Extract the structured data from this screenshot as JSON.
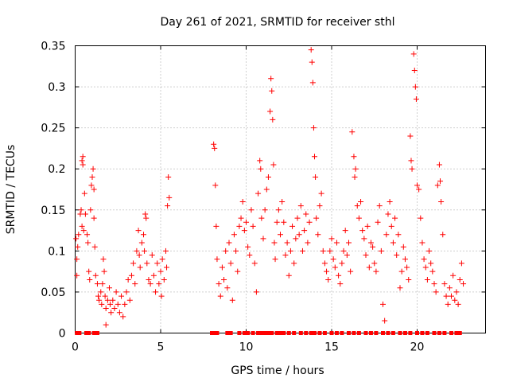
{
  "chart_data": {
    "type": "scatter",
    "title": "Day 261 of 2021, SRMTID for receiver sthl",
    "xlabel": "GPS time / hours",
    "ylabel": "SRMTID / TECUs",
    "xlim": [
      0,
      24
    ],
    "ylim": [
      0,
      0.35
    ],
    "x_ticks": [
      0,
      5,
      10,
      15,
      20
    ],
    "x_tick_labels": [
      "0",
      "5",
      "10",
      "15",
      "20"
    ],
    "y_ticks": [
      0,
      0.05,
      0.1,
      0.15,
      0.2,
      0.25,
      0.3,
      0.35
    ],
    "y_tick_labels": [
      "0",
      "0.05",
      "0.1",
      "0.15",
      "0.2",
      "0.25",
      "0.3",
      "0.35"
    ],
    "grid": true,
    "marker": "+",
    "color": "#ff0000",
    "series": [
      {
        "name": "SRMTID",
        "points": [
          [
            0.05,
            0.115
          ],
          [
            0.1,
            0.09
          ],
          [
            0.1,
            0.07
          ],
          [
            0.15,
            0.105
          ],
          [
            0.2,
            0.12
          ],
          [
            0.3,
            0.145
          ],
          [
            0.35,
            0.15
          ],
          [
            0.4,
            0.13
          ],
          [
            0.4,
            0.21
          ],
          [
            0.45,
            0.215
          ],
          [
            0.45,
            0.205
          ],
          [
            0.5,
            0.125
          ],
          [
            0.55,
            0.17
          ],
          [
            0.6,
            0.145
          ],
          [
            0.7,
            0.12
          ],
          [
            0.75,
            0.11
          ],
          [
            0.8,
            0.075
          ],
          [
            0.85,
            0.065
          ],
          [
            0.9,
            0.15
          ],
          [
            0.95,
            0.18
          ],
          [
            1.0,
            0.19
          ],
          [
            1.05,
            0.2
          ],
          [
            1.1,
            0.175
          ],
          [
            1.1,
            0.14
          ],
          [
            1.15,
            0.105
          ],
          [
            1.2,
            0.07
          ],
          [
            1.3,
            0.06
          ],
          [
            1.35,
            0.045
          ],
          [
            1.4,
            0.04
          ],
          [
            1.5,
            0.05
          ],
          [
            1.55,
            0.035
          ],
          [
            1.6,
            0.06
          ],
          [
            1.65,
            0.09
          ],
          [
            1.7,
            0.075
          ],
          [
            1.75,
            0.045
          ],
          [
            1.8,
            0.03
          ],
          [
            1.8,
            0.01
          ],
          [
            1.9,
            0.04
          ],
          [
            2.0,
            0.055
          ],
          [
            2.05,
            0.035
          ],
          [
            2.1,
            0.025
          ],
          [
            2.2,
            0.04
          ],
          [
            2.3,
            0.03
          ],
          [
            2.4,
            0.05
          ],
          [
            2.5,
            0.035
          ],
          [
            2.6,
            0.025
          ],
          [
            2.7,
            0.045
          ],
          [
            2.8,
            0.02
          ],
          [
            2.9,
            0.035
          ],
          [
            3.0,
            0.05
          ],
          [
            3.1,
            0.065
          ],
          [
            3.2,
            0.04
          ],
          [
            3.3,
            0.07
          ],
          [
            3.4,
            0.085
          ],
          [
            3.5,
            0.06
          ],
          [
            3.6,
            0.1
          ],
          [
            3.7,
            0.125
          ],
          [
            3.75,
            0.095
          ],
          [
            3.8,
            0.08
          ],
          [
            3.9,
            0.11
          ],
          [
            4.0,
            0.12
          ],
          [
            4.05,
            0.1
          ],
          [
            4.1,
            0.145
          ],
          [
            4.15,
            0.14
          ],
          [
            4.2,
            0.085
          ],
          [
            4.3,
            0.065
          ],
          [
            4.4,
            0.06
          ],
          [
            4.5,
            0.095
          ],
          [
            4.6,
            0.07
          ],
          [
            4.7,
            0.05
          ],
          [
            4.8,
            0.085
          ],
          [
            4.9,
            0.06
          ],
          [
            5.0,
            0.075
          ],
          [
            5.05,
            0.045
          ],
          [
            5.1,
            0.09
          ],
          [
            5.2,
            0.065
          ],
          [
            5.3,
            0.1
          ],
          [
            5.35,
            0.08
          ],
          [
            5.4,
            0.155
          ],
          [
            5.45,
            0.19
          ],
          [
            5.5,
            0.165
          ],
          [
            8.1,
            0.23
          ],
          [
            8.15,
            0.225
          ],
          [
            8.2,
            0.18
          ],
          [
            8.25,
            0.13
          ],
          [
            8.3,
            0.09
          ],
          [
            8.4,
            0.06
          ],
          [
            8.5,
            0.045
          ],
          [
            8.6,
            0.08
          ],
          [
            8.7,
            0.065
          ],
          [
            8.8,
            0.1
          ],
          [
            8.9,
            0.055
          ],
          [
            9.0,
            0.11
          ],
          [
            9.1,
            0.085
          ],
          [
            9.2,
            0.04
          ],
          [
            9.3,
            0.12
          ],
          [
            9.4,
            0.1
          ],
          [
            9.5,
            0.075
          ],
          [
            9.6,
            0.13
          ],
          [
            9.7,
            0.14
          ],
          [
            9.8,
            0.16
          ],
          [
            9.9,
            0.125
          ],
          [
            10.0,
            0.135
          ],
          [
            10.1,
            0.105
          ],
          [
            10.2,
            0.095
          ],
          [
            10.3,
            0.15
          ],
          [
            10.4,
            0.13
          ],
          [
            10.5,
            0.085
          ],
          [
            10.6,
            0.05
          ],
          [
            10.7,
            0.17
          ],
          [
            10.8,
            0.21
          ],
          [
            10.85,
            0.2
          ],
          [
            10.9,
            0.14
          ],
          [
            11.0,
            0.115
          ],
          [
            11.1,
            0.15
          ],
          [
            11.2,
            0.175
          ],
          [
            11.3,
            0.19
          ],
          [
            11.4,
            0.27
          ],
          [
            11.45,
            0.31
          ],
          [
            11.5,
            0.295
          ],
          [
            11.55,
            0.26
          ],
          [
            11.6,
            0.205
          ],
          [
            11.65,
            0.11
          ],
          [
            11.7,
            0.09
          ],
          [
            11.8,
            0.135
          ],
          [
            11.9,
            0.15
          ],
          [
            12.0,
            0.12
          ],
          [
            12.1,
            0.16
          ],
          [
            12.2,
            0.135
          ],
          [
            12.3,
            0.095
          ],
          [
            12.4,
            0.11
          ],
          [
            12.5,
            0.07
          ],
          [
            12.6,
            0.1
          ],
          [
            12.7,
            0.13
          ],
          [
            12.8,
            0.085
          ],
          [
            12.9,
            0.115
          ],
          [
            13.0,
            0.14
          ],
          [
            13.1,
            0.12
          ],
          [
            13.2,
            0.155
          ],
          [
            13.3,
            0.1
          ],
          [
            13.4,
            0.125
          ],
          [
            13.5,
            0.145
          ],
          [
            13.6,
            0.11
          ],
          [
            13.7,
            0.135
          ],
          [
            13.8,
            0.345
          ],
          [
            13.85,
            0.33
          ],
          [
            13.9,
            0.305
          ],
          [
            13.95,
            0.25
          ],
          [
            14.0,
            0.215
          ],
          [
            14.05,
            0.19
          ],
          [
            14.1,
            0.14
          ],
          [
            14.2,
            0.12
          ],
          [
            14.3,
            0.155
          ],
          [
            14.4,
            0.17
          ],
          [
            14.5,
            0.1
          ],
          [
            14.6,
            0.085
          ],
          [
            14.7,
            0.075
          ],
          [
            14.8,
            0.065
          ],
          [
            14.9,
            0.1
          ],
          [
            15.0,
            0.115
          ],
          [
            15.1,
            0.09
          ],
          [
            15.2,
            0.08
          ],
          [
            15.3,
            0.11
          ],
          [
            15.4,
            0.07
          ],
          [
            15.5,
            0.06
          ],
          [
            15.6,
            0.085
          ],
          [
            15.7,
            0.1
          ],
          [
            15.8,
            0.125
          ],
          [
            15.9,
            0.095
          ],
          [
            16.0,
            0.11
          ],
          [
            16.1,
            0.075
          ],
          [
            16.2,
            0.245
          ],
          [
            16.3,
            0.215
          ],
          [
            16.35,
            0.19
          ],
          [
            16.4,
            0.2
          ],
          [
            16.5,
            0.155
          ],
          [
            16.6,
            0.14
          ],
          [
            16.7,
            0.16
          ],
          [
            16.8,
            0.125
          ],
          [
            16.9,
            0.115
          ],
          [
            17.0,
            0.095
          ],
          [
            17.1,
            0.13
          ],
          [
            17.2,
            0.08
          ],
          [
            17.3,
            0.11
          ],
          [
            17.4,
            0.105
          ],
          [
            17.5,
            0.085
          ],
          [
            17.6,
            0.075
          ],
          [
            17.7,
            0.135
          ],
          [
            17.8,
            0.155
          ],
          [
            17.9,
            0.1
          ],
          [
            18.0,
            0.035
          ],
          [
            18.1,
            0.015
          ],
          [
            18.2,
            0.12
          ],
          [
            18.3,
            0.145
          ],
          [
            18.4,
            0.16
          ],
          [
            18.5,
            0.13
          ],
          [
            18.6,
            0.11
          ],
          [
            18.7,
            0.14
          ],
          [
            18.8,
            0.095
          ],
          [
            18.9,
            0.12
          ],
          [
            19.0,
            0.055
          ],
          [
            19.1,
            0.075
          ],
          [
            19.2,
            0.105
          ],
          [
            19.3,
            0.09
          ],
          [
            19.4,
            0.08
          ],
          [
            19.5,
            0.065
          ],
          [
            19.6,
            0.24
          ],
          [
            19.65,
            0.21
          ],
          [
            19.7,
            0.2
          ],
          [
            19.8,
            0.34
          ],
          [
            19.85,
            0.32
          ],
          [
            19.9,
            0.3
          ],
          [
            19.95,
            0.285
          ],
          [
            20.0,
            0.18
          ],
          [
            20.1,
            0.175
          ],
          [
            20.2,
            0.14
          ],
          [
            20.3,
            0.11
          ],
          [
            20.4,
            0.09
          ],
          [
            20.5,
            0.08
          ],
          [
            20.6,
            0.065
          ],
          [
            20.7,
            0.1
          ],
          [
            20.8,
            0.085
          ],
          [
            20.9,
            0.075
          ],
          [
            21.0,
            0.06
          ],
          [
            21.1,
            0.05
          ],
          [
            21.2,
            0.18
          ],
          [
            21.3,
            0.205
          ],
          [
            21.35,
            0.185
          ],
          [
            21.4,
            0.16
          ],
          [
            21.5,
            0.12
          ],
          [
            21.6,
            0.06
          ],
          [
            21.7,
            0.045
          ],
          [
            21.8,
            0.035
          ],
          [
            21.9,
            0.055
          ],
          [
            22.0,
            0.045
          ],
          [
            22.1,
            0.07
          ],
          [
            22.2,
            0.04
          ],
          [
            22.3,
            0.05
          ],
          [
            22.4,
            0.035
          ],
          [
            22.5,
            0.065
          ],
          [
            22.6,
            0.085
          ],
          [
            22.7,
            0.06
          ]
        ]
      }
    ],
    "zero_markers_x": [
      0.1,
      0.25,
      0.65,
      0.8,
      1.1,
      1.2,
      1.3,
      8.0,
      8.1,
      8.2,
      8.3,
      8.9,
      9.1,
      9.6,
      9.9,
      10.1,
      10.4,
      10.7,
      10.9,
      11.1,
      11.3,
      11.5,
      11.8,
      12.0,
      12.2,
      12.5,
      12.8,
      13.2,
      13.5,
      13.8,
      14.0,
      14.3,
      14.6,
      15.0,
      15.3,
      15.6,
      16.0,
      16.3,
      16.6,
      17.0,
      17.3,
      17.6,
      18.0,
      18.3,
      18.6,
      19.0,
      19.3,
      19.6,
      20.0,
      20.3,
      20.6,
      21.0,
      21.3,
      21.6,
      22.0,
      22.3,
      22.5
    ]
  }
}
